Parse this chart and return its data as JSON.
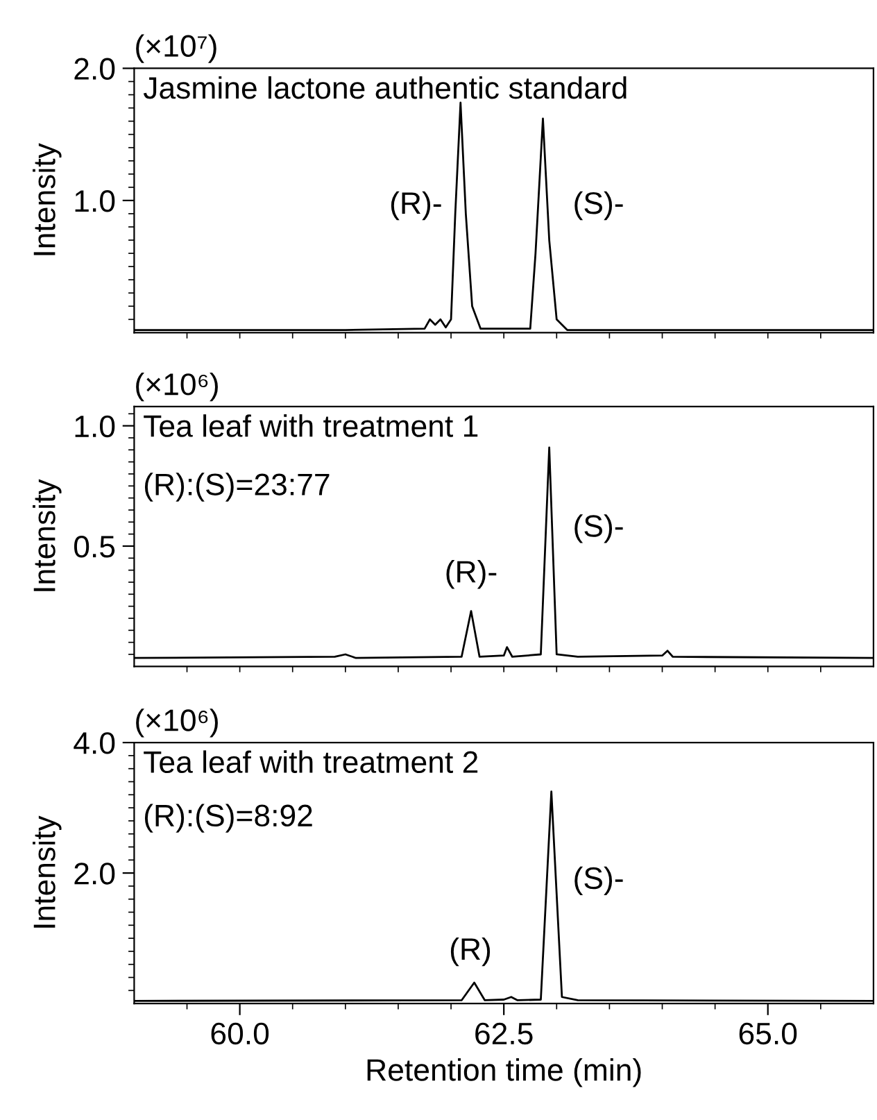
{
  "chart_data": [
    {
      "type": "line",
      "title": "Jasmine lactone authentic standard",
      "ylabel": "Intensity",
      "annotations": [
        "(×10⁷)",
        "(R)-",
        "(S)-"
      ],
      "tick_labels": "y",
      "grid": false,
      "legend": false,
      "marker": "none",
      "line_style": "solid",
      "series": [
        {
          "color": "#000000",
          "x": [
            59.0,
            61.0,
            61.75,
            61.8,
            61.85,
            61.9,
            61.95,
            62.0,
            62.04,
            62.09,
            62.14,
            62.2,
            62.28,
            62.75,
            62.8,
            62.87,
            62.93,
            63.0,
            63.1,
            66.0
          ],
          "values": [
            0.02,
            0.02,
            0.03,
            0.1,
            0.06,
            0.1,
            0.04,
            0.1,
            0.9,
            1.74,
            0.9,
            0.2,
            0.03,
            0.03,
            0.6,
            1.62,
            0.7,
            0.1,
            0.02,
            0.02
          ]
        }
      ],
      "xlim": [
        59.0,
        66.0
      ],
      "xticks": [
        {
          "value": 59.5,
          "label": null
        },
        {
          "value": 60.0,
          "label": null
        },
        {
          "value": 60.5,
          "label": null
        },
        {
          "value": 61.0,
          "label": null
        },
        {
          "value": 61.5,
          "label": null
        },
        {
          "value": 62.0,
          "label": null
        },
        {
          "value": 62.5,
          "label": null
        },
        {
          "value": 63.0,
          "label": null
        },
        {
          "value": 63.5,
          "label": null
        },
        {
          "value": 64.0,
          "label": null
        },
        {
          "value": 64.5,
          "label": null
        },
        {
          "value": 65.0,
          "label": null
        },
        {
          "value": 65.5,
          "label": null
        }
      ],
      "ylim": [
        0,
        2.0
      ],
      "yticks": [
        {
          "value": 0.1,
          "label": null
        },
        {
          "value": 0.2,
          "label": null
        },
        {
          "value": 0.3,
          "label": null
        },
        {
          "value": 0.4,
          "label": null
        },
        {
          "value": 0.5,
          "label": null
        },
        {
          "value": 0.6,
          "label": null
        },
        {
          "value": 0.7,
          "label": null
        },
        {
          "value": 0.8,
          "label": null
        },
        {
          "value": 0.9,
          "label": null
        },
        {
          "value": 1.0,
          "label": "1.0"
        },
        {
          "value": 1.1,
          "label": null
        },
        {
          "value": 1.2,
          "label": null
        },
        {
          "value": 1.3,
          "label": null
        },
        {
          "value": 1.4,
          "label": null
        },
        {
          "value": 1.5,
          "label": null
        },
        {
          "value": 1.6,
          "label": null
        },
        {
          "value": 1.7,
          "label": null
        },
        {
          "value": 1.8,
          "label": null
        },
        {
          "value": 1.9,
          "label": null
        },
        {
          "value": 2.0,
          "label": "2.0"
        }
      ]
    },
    {
      "type": "line",
      "title": "Tea leaf with treatment 1",
      "ylabel": "Intensity",
      "annotations": [
        "(×10⁶)",
        "(R):(S)=23:77",
        {
          "text": "(R)-",
          "x": 62.19,
          "y": 0.23
        },
        "(S)-"
      ],
      "tick_labels": "y",
      "grid": false,
      "legend": false,
      "marker": "none",
      "line_style": "solid",
      "series": [
        {
          "color": "#000000",
          "x": [
            59.0,
            60.9,
            61.0,
            61.1,
            62.1,
            62.19,
            62.27,
            62.5,
            62.53,
            62.58,
            62.85,
            62.93,
            63.0,
            63.2,
            64.0,
            64.05,
            64.1,
            66.0
          ],
          "values": [
            0.035,
            0.04,
            0.05,
            0.035,
            0.04,
            0.23,
            0.04,
            0.045,
            0.08,
            0.04,
            0.05,
            0.91,
            0.05,
            0.04,
            0.045,
            0.065,
            0.04,
            0.035
          ]
        }
      ],
      "xlim": [
        59.0,
        66.0
      ],
      "xticks": [
        {
          "value": 59.5,
          "label": null
        },
        {
          "value": 60.0,
          "label": null
        },
        {
          "value": 60.5,
          "label": null
        },
        {
          "value": 61.0,
          "label": null
        },
        {
          "value": 61.5,
          "label": null
        },
        {
          "value": 62.0,
          "label": null
        },
        {
          "value": 62.5,
          "label": null
        },
        {
          "value": 63.0,
          "label": null
        },
        {
          "value": 63.5,
          "label": null
        },
        {
          "value": 64.0,
          "label": null
        },
        {
          "value": 64.5,
          "label": null
        },
        {
          "value": 65.0,
          "label": null
        },
        {
          "value": 65.5,
          "label": null
        }
      ],
      "ylim": [
        0,
        1.08
      ],
      "yticks": [
        {
          "value": 0.05,
          "label": null
        },
        {
          "value": 0.1,
          "label": null
        },
        {
          "value": 0.15,
          "label": null
        },
        {
          "value": 0.2,
          "label": null
        },
        {
          "value": 0.25,
          "label": null
        },
        {
          "value": 0.3,
          "label": null
        },
        {
          "value": 0.35,
          "label": null
        },
        {
          "value": 0.4,
          "label": null
        },
        {
          "value": 0.45,
          "label": null
        },
        {
          "value": 0.5,
          "label": "0.5"
        },
        {
          "value": 0.55,
          "label": null
        },
        {
          "value": 0.6,
          "label": null
        },
        {
          "value": 0.65,
          "label": null
        },
        {
          "value": 0.7,
          "label": null
        },
        {
          "value": 0.75,
          "label": null
        },
        {
          "value": 0.8,
          "label": null
        },
        {
          "value": 0.85,
          "label": null
        },
        {
          "value": 0.9,
          "label": null
        },
        {
          "value": 0.95,
          "label": null
        },
        {
          "value": 1.0,
          "label": "1.0"
        },
        {
          "value": 1.05,
          "label": null
        }
      ]
    },
    {
      "type": "line",
      "title": "Tea leaf with treatment 2",
      "xlabel": "Retention time (min)",
      "ylabel": "Intensity",
      "annotations": [
        "(×10⁶)",
        "(R):(S)=8:92",
        {
          "text": "(R)",
          "x": 62.22,
          "y": 0.32
        },
        "(S)-"
      ],
      "grid": false,
      "legend": false,
      "marker": "none",
      "line_style": "solid",
      "series": [
        {
          "color": "#000000",
          "x": [
            59.0,
            62.1,
            62.22,
            62.32,
            62.5,
            62.57,
            62.63,
            62.85,
            62.95,
            63.05,
            63.2,
            66.0
          ],
          "values": [
            0.04,
            0.05,
            0.32,
            0.05,
            0.06,
            0.1,
            0.05,
            0.06,
            3.25,
            0.1,
            0.05,
            0.04
          ]
        }
      ],
      "xlim": [
        59.0,
        66.0
      ],
      "xticks": [
        {
          "value": 59.5,
          "label": null
        },
        {
          "value": 60.0,
          "label": "60.0"
        },
        {
          "value": 60.5,
          "label": null
        },
        {
          "value": 61.0,
          "label": null
        },
        {
          "value": 61.5,
          "label": null
        },
        {
          "value": 62.0,
          "label": null
        },
        {
          "value": 62.5,
          "label": "62.5"
        },
        {
          "value": 63.0,
          "label": null
        },
        {
          "value": 63.5,
          "label": null
        },
        {
          "value": 64.0,
          "label": null
        },
        {
          "value": 64.5,
          "label": null
        },
        {
          "value": 65.0,
          "label": "65.0"
        },
        {
          "value": 65.5,
          "label": null
        }
      ],
      "ylim": [
        0,
        4.0
      ],
      "yticks": [
        {
          "value": 0.2,
          "label": null
        },
        {
          "value": 0.4,
          "label": null
        },
        {
          "value": 0.6,
          "label": null
        },
        {
          "value": 0.8,
          "label": null
        },
        {
          "value": 1.0,
          "label": null
        },
        {
          "value": 1.2,
          "label": null
        },
        {
          "value": 1.4,
          "label": null
        },
        {
          "value": 1.6,
          "label": null
        },
        {
          "value": 1.8,
          "label": null
        },
        {
          "value": 2.0,
          "label": "2.0"
        },
        {
          "value": 2.2,
          "label": null
        },
        {
          "value": 2.4,
          "label": null
        },
        {
          "value": 2.6,
          "label": null
        },
        {
          "value": 2.8,
          "label": null
        },
        {
          "value": 3.0,
          "label": null
        },
        {
          "value": 3.2,
          "label": null
        },
        {
          "value": 3.4,
          "label": null
        },
        {
          "value": 3.6,
          "label": null
        },
        {
          "value": 3.8,
          "label": null
        },
        {
          "value": 4.0,
          "label": "4.0"
        }
      ]
    }
  ]
}
